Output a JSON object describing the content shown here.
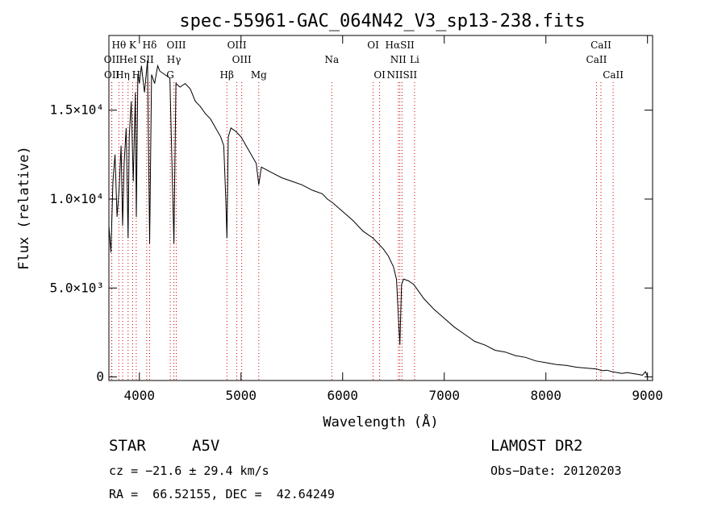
{
  "chart_data": {
    "type": "line",
    "title": "spec-55961-GAC_064N42_V3_sp13-238.fits",
    "xlabel": "Wavelength (Å)",
    "ylabel": "Flux (relative)",
    "xlim": [
      3700,
      9050
    ],
    "ylim": [
      -200,
      19200
    ],
    "x_ticks": [
      4000,
      5000,
      6000,
      7000,
      8000,
      9000
    ],
    "x_tick_labels": [
      "4000",
      "5000",
      "6000",
      "7000",
      "8000",
      "9000"
    ],
    "y_ticks": [
      0,
      5000,
      10000,
      15000
    ],
    "y_tick_labels": [
      "0",
      "5.0×10³",
      "1.0×10⁴",
      "1.5×10⁴"
    ],
    "grid": false,
    "line_color": "#000000",
    "marker_color": "#cc0000",
    "series": [
      {
        "x": [
          3700,
          3720,
          3740,
          3760,
          3780,
          3800,
          3820,
          3835,
          3850,
          3870,
          3889,
          3900,
          3920,
          3940,
          3960,
          3970,
          3985,
          4000,
          4020,
          4050,
          4080,
          4101,
          4120,
          4150,
          4180,
          4200,
          4250,
          4300,
          4340,
          4360,
          4400,
          4450,
          4500,
          4550,
          4600,
          4650,
          4700,
          4750,
          4800,
          4830,
          4850,
          4861,
          4875,
          4900,
          4950,
          5000,
          5050,
          5100,
          5150,
          5175,
          5200,
          5300,
          5400,
          5500,
          5600,
          5700,
          5800,
          5850,
          5900,
          6000,
          6100,
          6200,
          6300,
          6400,
          6450,
          6500,
          6530,
          6563,
          6580,
          6600,
          6650,
          6700,
          6800,
          6900,
          7000,
          7100,
          7200,
          7300,
          7400,
          7500,
          7600,
          7700,
          7800,
          7900,
          8000,
          8100,
          8200,
          8300,
          8400,
          8500,
          8550,
          8600,
          8650,
          8700,
          8750,
          8800,
          8850,
          8900,
          8950,
          8980,
          9000
        ],
        "y": [
          8500,
          7000,
          11000,
          12500,
          9000,
          10500,
          13000,
          8500,
          12000,
          14000,
          7800,
          13500,
          15500,
          11000,
          16000,
          9000,
          17000,
          16500,
          17500,
          16000,
          17800,
          7500,
          17000,
          16500,
          17500,
          17200,
          17000,
          16800,
          7500,
          16500,
          16300,
          16500,
          16200,
          15500,
          15200,
          14800,
          14500,
          14000,
          13500,
          13000,
          10000,
          7800,
          13500,
          14000,
          13800,
          13500,
          13000,
          12500,
          12000,
          10800,
          11800,
          11500,
          11200,
          11000,
          10800,
          10500,
          10300,
          10000,
          9800,
          9300,
          8800,
          8200,
          7800,
          7200,
          6800,
          6200,
          5500,
          1800,
          5200,
          5500,
          5400,
          5200,
          4400,
          3800,
          3300,
          2800,
          2400,
          2000,
          1800,
          1500,
          1400,
          1200,
          1100,
          900,
          800,
          700,
          650,
          550,
          500,
          450,
          350,
          380,
          300,
          250,
          200,
          250,
          200,
          150,
          100,
          300,
          0
        ]
      }
    ],
    "line_markers": [
      {
        "label": "Hθ",
        "x": 3798,
        "row": 0
      },
      {
        "label": "K",
        "x": 3934,
        "row": 0
      },
      {
        "label": "Hδ",
        "x": 4101,
        "row": 0
      },
      {
        "label": "OIII",
        "x": 4363,
        "row": 0
      },
      {
        "label": "OIII",
        "x": 4959,
        "row": 0
      },
      {
        "label": "OI",
        "x": 6300,
        "row": 0
      },
      {
        "label": "HαSII",
        "x": 6563,
        "row": 0
      },
      {
        "label": "CaII",
        "x": 8542,
        "row": 0
      },
      {
        "label": "OII",
        "x": 3727,
        "row": 1
      },
      {
        "label": "HeI",
        "x": 3889,
        "row": 1
      },
      {
        "label": "SII",
        "x": 4072,
        "row": 1
      },
      {
        "label": "Hγ",
        "x": 4340,
        "row": 1
      },
      {
        "label": "OIII",
        "x": 5007,
        "row": 1
      },
      {
        "label": "Na",
        "x": 5893,
        "row": 1
      },
      {
        "label": "NII",
        "x": 6548,
        "row": 1
      },
      {
        "label": "Li",
        "x": 6708,
        "row": 1
      },
      {
        "label": "CaII",
        "x": 8498,
        "row": 1
      },
      {
        "label": "OII",
        "x": 3729,
        "row": 2
      },
      {
        "label": "Hη",
        "x": 3835,
        "row": 2
      },
      {
        "label": "H",
        "x": 3969,
        "row": 2
      },
      {
        "label": "G",
        "x": 4304,
        "row": 2
      },
      {
        "label": "Hβ",
        "x": 4861,
        "row": 2
      },
      {
        "label": "Mg",
        "x": 5175,
        "row": 2
      },
      {
        "label": "OI",
        "x": 6364,
        "row": 2
      },
      {
        "label": "NIISII",
        "x": 6584,
        "row": 2
      },
      {
        "label": "CaII",
        "x": 8662,
        "row": 2
      }
    ]
  },
  "info": {
    "object_type": "STAR",
    "subclass": "A5V",
    "survey": "LAMOST DR2",
    "cz": "cz = −21.6 ± 29.4 km/s",
    "obs_date": "Obs−Date: 20120203",
    "coords": "RA =  66.52155, DEC =  42.64249"
  }
}
